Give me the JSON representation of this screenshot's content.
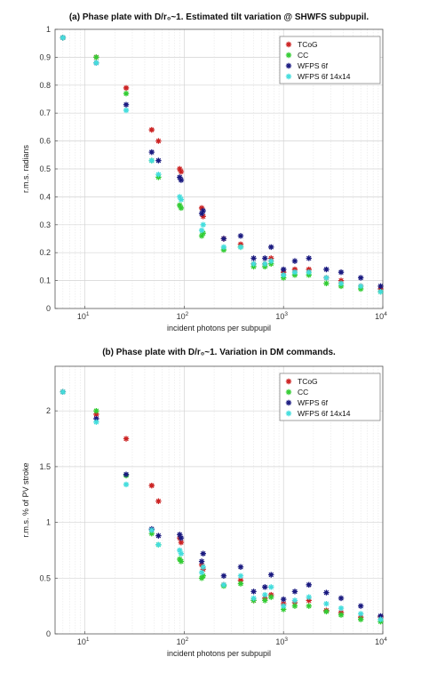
{
  "chart_data": [
    {
      "type": "scatter",
      "title": "(a) Phase plate with D/r₀~1. Estimated tilt variation @ SHWFS subpupil.",
      "xlabel": "incident photons per subpupil",
      "ylabel": "r.m.s. radians",
      "xscale": "log",
      "xlim": [
        5,
        10000
      ],
      "ylim": [
        0,
        1
      ],
      "xticks": [
        {
          "label": "10",
          "sup": "1",
          "value": 10
        },
        {
          "label": "10",
          "sup": "2",
          "value": 100
        },
        {
          "label": "10",
          "sup": "3",
          "value": 1000
        },
        {
          "label": "10",
          "sup": "4",
          "value": 10000
        }
      ],
      "yticks": [
        "0",
        "0.1",
        "0.2",
        "0.3",
        "0.4",
        "0.5",
        "0.6",
        "0.7",
        "0.8",
        "0.9",
        "1"
      ],
      "grid": true,
      "legend_position": "top-right",
      "marker": "*",
      "series": [
        {
          "name": "TCoG",
          "color": "#cc2222",
          "x": [
            6,
            13,
            26,
            47,
            55,
            90,
            93,
            150,
            155,
            250,
            370,
            500,
            650,
            750,
            1000,
            1300,
            1800,
            2700,
            3800,
            6000,
            9500
          ],
          "y": [
            0.97,
            0.9,
            0.79,
            0.64,
            0.6,
            0.5,
            0.49,
            0.36,
            0.33,
            0.25,
            0.23,
            0.16,
            0.16,
            0.18,
            0.13,
            0.14,
            0.14,
            0.11,
            0.1,
            0.08,
            0.07
          ]
        },
        {
          "name": "CC",
          "color": "#33cc33",
          "x": [
            6,
            13,
            26,
            47,
            55,
            90,
            93,
            150,
            155,
            250,
            370,
            500,
            650,
            750,
            1000,
            1300,
            1800,
            2700,
            3800,
            6000,
            9500
          ],
          "y": [
            0.97,
            0.9,
            0.77,
            0.53,
            0.47,
            0.37,
            0.36,
            0.26,
            0.27,
            0.21,
            0.22,
            0.15,
            0.15,
            0.16,
            0.11,
            0.12,
            0.12,
            0.09,
            0.08,
            0.07,
            0.06
          ]
        },
        {
          "name": "WFPS 6f",
          "color": "#1a1a80",
          "x": [
            6,
            13,
            26,
            47,
            55,
            90,
            93,
            150,
            155,
            250,
            370,
            500,
            650,
            750,
            1000,
            1300,
            1800,
            2700,
            3800,
            6000,
            9500
          ],
          "y": [
            0.97,
            0.88,
            0.73,
            0.56,
            0.53,
            0.47,
            0.46,
            0.34,
            0.35,
            0.25,
            0.26,
            0.18,
            0.18,
            0.22,
            0.14,
            0.17,
            0.18,
            0.14,
            0.13,
            0.11,
            0.08
          ]
        },
        {
          "name": "WFPS 6f 14x14",
          "color": "#44dddd",
          "x": [
            6,
            13,
            26,
            47,
            55,
            90,
            93,
            150,
            155,
            250,
            370,
            500,
            650,
            750,
            1000,
            1300,
            1800,
            2700,
            3800,
            6000,
            9500
          ],
          "y": [
            0.97,
            0.88,
            0.71,
            0.53,
            0.48,
            0.4,
            0.39,
            0.28,
            0.3,
            0.22,
            0.22,
            0.16,
            0.16,
            0.17,
            0.12,
            0.13,
            0.13,
            0.11,
            0.09,
            0.08,
            0.06
          ]
        }
      ]
    },
    {
      "type": "scatter",
      "title": "(b) Phase plate with D/r₀~1. Variation in DM commands.",
      "xlabel": "incident photons per subpupil",
      "ylabel": "r.m.s. % of PV stroke",
      "xscale": "log",
      "xlim": [
        5,
        10000
      ],
      "ylim": [
        0,
        2.4
      ],
      "xticks": [
        {
          "label": "10",
          "sup": "1",
          "value": 10
        },
        {
          "label": "10",
          "sup": "2",
          "value": 100
        },
        {
          "label": "10",
          "sup": "3",
          "value": 1000
        },
        {
          "label": "10",
          "sup": "4",
          "value": 10000
        }
      ],
      "yticks": [
        "0",
        "0.5",
        "1",
        "1.5",
        "2"
      ],
      "grid": true,
      "legend_position": "top-right",
      "marker": "*",
      "series": [
        {
          "name": "TCoG",
          "color": "#cc2222",
          "x": [
            6,
            13,
            26,
            47,
            55,
            90,
            93,
            150,
            155,
            250,
            370,
            500,
            650,
            750,
            1000,
            1300,
            1800,
            2700,
            3800,
            6000,
            9500
          ],
          "y": [
            2.17,
            1.97,
            1.75,
            1.33,
            1.19,
            0.86,
            0.82,
            0.62,
            0.58,
            0.44,
            0.48,
            0.3,
            0.32,
            0.35,
            0.27,
            0.28,
            0.3,
            0.21,
            0.19,
            0.15,
            0.15
          ]
        },
        {
          "name": "CC",
          "color": "#33cc33",
          "x": [
            6,
            13,
            26,
            47,
            55,
            90,
            93,
            150,
            155,
            250,
            370,
            500,
            650,
            750,
            1000,
            1300,
            1800,
            2700,
            3800,
            6000,
            9500
          ],
          "y": [
            2.17,
            2.0,
            1.42,
            0.9,
            0.8,
            0.67,
            0.65,
            0.5,
            0.52,
            0.43,
            0.45,
            0.3,
            0.3,
            0.33,
            0.22,
            0.25,
            0.25,
            0.2,
            0.17,
            0.13,
            0.11
          ]
        },
        {
          "name": "WFPS 6f",
          "color": "#1a1a80",
          "x": [
            6,
            13,
            26,
            47,
            55,
            90,
            93,
            150,
            155,
            250,
            370,
            500,
            650,
            750,
            1000,
            1300,
            1800,
            2700,
            3800,
            6000,
            9500
          ],
          "y": [
            2.17,
            1.93,
            1.43,
            0.94,
            0.88,
            0.89,
            0.86,
            0.65,
            0.72,
            0.52,
            0.6,
            0.38,
            0.42,
            0.53,
            0.31,
            0.38,
            0.44,
            0.37,
            0.32,
            0.25,
            0.16
          ]
        },
        {
          "name": "WFPS 6f 14x14",
          "color": "#44dddd",
          "x": [
            6,
            13,
            26,
            47,
            55,
            90,
            93,
            150,
            155,
            250,
            370,
            500,
            650,
            750,
            1000,
            1300,
            1800,
            2700,
            3800,
            6000,
            9500
          ],
          "y": [
            2.17,
            1.9,
            1.34,
            0.93,
            0.8,
            0.75,
            0.72,
            0.55,
            0.6,
            0.44,
            0.52,
            0.32,
            0.35,
            0.42,
            0.25,
            0.3,
            0.33,
            0.27,
            0.23,
            0.18,
            0.13
          ]
        }
      ]
    }
  ]
}
